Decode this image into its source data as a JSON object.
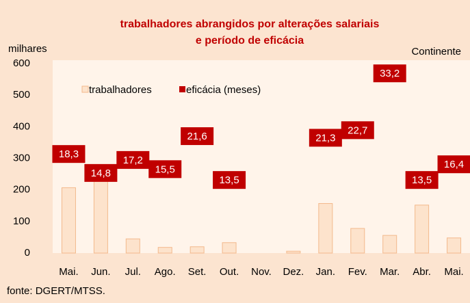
{
  "chart_data": {
    "type": "bar",
    "title": [
      "trabalhadores abrangidos por alterações salariais",
      "e período de eficácia"
    ],
    "y_label": "milhares",
    "annotation": "Continente",
    "source": "fonte: DGERT/MTSS.",
    "categories": [
      "Mai.",
      "Jun.",
      "Jul.",
      "Ago.",
      "Set.",
      "Out.",
      "Nov.",
      "Dez.",
      "Jan.",
      "Fev.",
      "Mar.",
      "Abr.",
      "Mai."
    ],
    "series": [
      {
        "name": "trabalhadores",
        "color": "#fde3cc",
        "edge": "#f3b98c",
        "values": [
          207,
          230,
          45,
          18,
          20,
          33,
          0,
          6,
          157,
          78,
          56,
          152,
          48
        ]
      },
      {
        "name": "eficácia (meses)",
        "color": "#c00000",
        "axis": "y2",
        "values": [
          18.3,
          14.8,
          17.2,
          15.5,
          21.6,
          13.5,
          null,
          null,
          21.3,
          22.7,
          33.2,
          13.5,
          16.4
        ],
        "value_labels": [
          "18,3",
          "14,8",
          "17,2",
          "15,5",
          "21,6",
          "13,5",
          null,
          null,
          "21,3",
          "22,7",
          "33,2",
          "13,5",
          "16,4"
        ]
      }
    ],
    "ylim": [
      0,
      600
    ],
    "yticks": [
      0,
      100,
      200,
      300,
      400,
      500,
      600
    ],
    "y2lim": [
      0,
      35
    ]
  }
}
